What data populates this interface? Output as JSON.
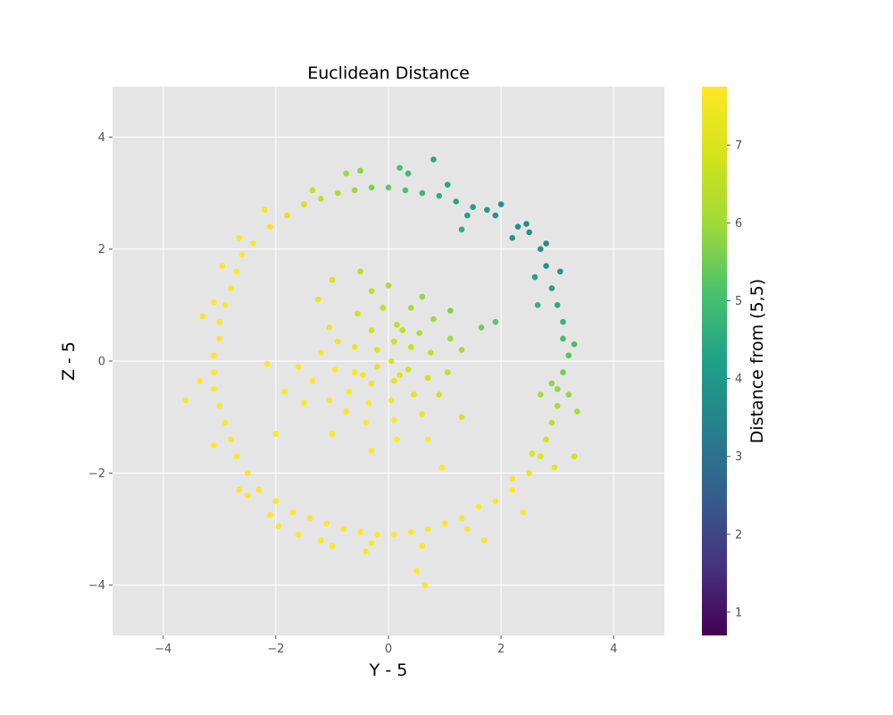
{
  "chart_data": {
    "type": "scatter",
    "title": "Euclidean Distance",
    "xlabel": "Y - 5",
    "ylabel": "Z - 5",
    "xlim": [
      -4.9,
      4.9
    ],
    "ylim": [
      -4.9,
      4.9
    ],
    "xticks": [
      -4,
      -2,
      0,
      2,
      4
    ],
    "yticks": [
      -4,
      -2,
      0,
      2,
      4
    ],
    "xtick_labels": [
      "−4",
      "−2",
      "0",
      "2",
      "4"
    ],
    "ytick_labels": [
      "−4",
      "−2",
      "0",
      "2",
      "4"
    ],
    "grid": true,
    "colormap": "viridis",
    "colorbar": {
      "label": "Distance from (5,5)",
      "range": [
        0.7,
        7.75
      ],
      "ticks": [
        1,
        2,
        3,
        4,
        5,
        6,
        7
      ],
      "tick_labels": [
        "1",
        "2",
        "3",
        "4",
        "5",
        "6",
        "7"
      ]
    },
    "colors": {
      "plot_background": "#e5e5e5",
      "grid": "#ffffff",
      "figure_background": "#ffffff"
    },
    "series": [
      {
        "points": [
          [
            2.0,
            2.8
          ],
          [
            2.3,
            2.4
          ],
          [
            2.5,
            2.3
          ],
          [
            2.7,
            2.0
          ],
          [
            2.8,
            1.7
          ],
          [
            2.9,
            1.3
          ],
          [
            3.0,
            1.0
          ],
          [
            3.1,
            0.7
          ],
          [
            3.1,
            0.4
          ],
          [
            3.2,
            0.1
          ],
          [
            3.1,
            -0.2
          ],
          [
            3.0,
            -0.5
          ],
          [
            3.0,
            -0.8
          ],
          [
            2.9,
            -1.1
          ],
          [
            2.8,
            -1.4
          ],
          [
            2.7,
            -1.7
          ],
          [
            2.5,
            -2.0
          ],
          [
            2.2,
            -2.3
          ],
          [
            1.9,
            -2.5
          ],
          [
            1.6,
            -2.6
          ],
          [
            1.3,
            -2.8
          ],
          [
            1.0,
            -2.9
          ],
          [
            0.7,
            -3.0
          ],
          [
            0.4,
            -3.05
          ],
          [
            0.1,
            -3.1
          ],
          [
            -0.2,
            -3.1
          ],
          [
            -0.5,
            -3.05
          ],
          [
            -0.8,
            -3.0
          ],
          [
            -1.1,
            -2.9
          ],
          [
            -1.4,
            -2.8
          ],
          [
            -1.7,
            -2.7
          ],
          [
            -2.0,
            -2.5
          ],
          [
            -2.3,
            -2.3
          ],
          [
            -2.5,
            -2.0
          ],
          [
            -2.7,
            -1.7
          ],
          [
            -2.8,
            -1.4
          ],
          [
            -2.9,
            -1.1
          ],
          [
            -3.0,
            -0.8
          ],
          [
            -3.1,
            -0.5
          ],
          [
            -3.1,
            -0.2
          ],
          [
            -3.1,
            0.1
          ],
          [
            -3.0,
            0.4
          ],
          [
            -3.0,
            0.7
          ],
          [
            -2.9,
            1.0
          ],
          [
            -2.8,
            1.3
          ],
          [
            -2.7,
            1.6
          ],
          [
            -2.6,
            1.9
          ],
          [
            -2.4,
            2.1
          ],
          [
            -2.1,
            2.4
          ],
          [
            -1.8,
            2.6
          ],
          [
            -1.5,
            2.8
          ],
          [
            -1.2,
            2.9
          ],
          [
            -0.9,
            3.0
          ],
          [
            -0.6,
            3.05
          ],
          [
            -0.3,
            3.1
          ],
          [
            0.0,
            3.1
          ],
          [
            0.3,
            3.05
          ],
          [
            0.6,
            3.0
          ],
          [
            0.9,
            2.95
          ],
          [
            1.2,
            2.85
          ],
          [
            1.5,
            2.75
          ],
          [
            1.75,
            2.7
          ],
          [
            0.8,
            3.6
          ],
          [
            -0.5,
            3.4
          ],
          [
            0.2,
            3.45
          ],
          [
            1.4,
            2.6
          ],
          [
            2.6,
            1.5
          ],
          [
            3.3,
            0.3
          ],
          [
            3.2,
            -0.6
          ],
          [
            3.3,
            -1.7
          ],
          [
            2.9,
            -0.4
          ],
          [
            2.7,
            -0.6
          ],
          [
            2.65,
            1.0
          ],
          [
            3.05,
            1.6
          ],
          [
            2.2,
            2.2
          ],
          [
            2.8,
            2.1
          ],
          [
            2.4,
            -2.7
          ],
          [
            1.7,
            -3.2
          ],
          [
            0.5,
            -3.75
          ],
          [
            0.65,
            -4.0
          ],
          [
            -0.4,
            -3.4
          ],
          [
            -1.0,
            -3.3
          ],
          [
            -1.6,
            -3.1
          ],
          [
            -2.1,
            -2.75
          ],
          [
            -2.5,
            -2.4
          ],
          [
            -3.6,
            -0.7
          ],
          [
            -3.3,
            0.8
          ],
          [
            -2.95,
            1.7
          ],
          [
            -2.2,
            2.7
          ],
          [
            -1.35,
            3.05
          ],
          [
            -0.75,
            3.35
          ],
          [
            0.35,
            3.35
          ],
          [
            1.05,
            3.15
          ],
          [
            1.3,
            2.35
          ],
          [
            -2.65,
            2.2
          ],
          [
            -3.1,
            1.05
          ],
          [
            -3.35,
            -0.35
          ],
          [
            -3.1,
            -1.5
          ],
          [
            -2.65,
            -2.3
          ],
          [
            -1.95,
            -2.95
          ],
          [
            -1.2,
            -3.2
          ],
          [
            -0.3,
            -3.25
          ],
          [
            0.6,
            -3.3
          ],
          [
            1.4,
            -3.0
          ],
          [
            2.2,
            -2.1
          ],
          [
            2.55,
            -1.65
          ],
          [
            2.95,
            -1.9
          ],
          [
            3.35,
            -0.9
          ],
          [
            2.45,
            2.45
          ],
          [
            1.9,
            2.6
          ],
          [
            -2.15,
            -0.05
          ],
          [
            -1.85,
            -0.55
          ],
          [
            -1.6,
            -0.1
          ],
          [
            -1.5,
            -0.75
          ],
          [
            -1.0,
            1.45
          ],
          [
            -0.5,
            1.6
          ],
          [
            0.0,
            1.35
          ],
          [
            0.95,
            -1.9
          ],
          [
            1.9,
            0.7
          ],
          [
            1.65,
            0.6
          ],
          [
            -2.0,
            -1.3
          ],
          [
            -1.0,
            -1.3
          ],
          [
            -0.3,
            -1.6
          ],
          [
            0.15,
            -1.4
          ],
          [
            0.7,
            -1.4
          ],
          [
            1.3,
            -1.0
          ],
          [
            1.3,
            0.2
          ],
          [
            1.1,
            0.9
          ],
          [
            0.6,
            1.15
          ],
          [
            -0.3,
            1.25
          ],
          [
            -1.25,
            1.1
          ],
          [
            -1.05,
            0.6
          ],
          [
            -1.2,
            0.15
          ],
          [
            -1.35,
            -0.35
          ],
          [
            -1.05,
            -0.7
          ],
          [
            -0.75,
            -0.9
          ],
          [
            -0.4,
            -1.1
          ],
          [
            0.1,
            -1.05
          ],
          [
            0.6,
            -0.95
          ],
          [
            0.9,
            -0.6
          ],
          [
            1.05,
            -0.2
          ],
          [
            1.1,
            0.4
          ],
          [
            0.8,
            0.75
          ],
          [
            0.4,
            0.95
          ],
          [
            -0.1,
            0.95
          ],
          [
            -0.55,
            0.85
          ],
          [
            -0.9,
            0.35
          ],
          [
            -0.95,
            -0.15
          ],
          [
            -0.7,
            -0.55
          ],
          [
            -0.35,
            -0.75
          ],
          [
            0.05,
            -0.7
          ],
          [
            0.45,
            -0.6
          ],
          [
            0.7,
            -0.3
          ],
          [
            0.75,
            0.15
          ],
          [
            0.55,
            0.5
          ],
          [
            0.15,
            0.65
          ],
          [
            -0.3,
            0.55
          ],
          [
            -0.6,
            0.25
          ],
          [
            -0.6,
            -0.2
          ],
          [
            -0.3,
            -0.4
          ],
          [
            0.1,
            -0.35
          ],
          [
            0.35,
            -0.15
          ],
          [
            0.4,
            0.25
          ],
          [
            0.1,
            0.35
          ],
          [
            -0.2,
            0.2
          ],
          [
            -0.2,
            -0.1
          ],
          [
            0.05,
            0.0
          ],
          [
            0.2,
            -0.25
          ],
          [
            -0.45,
            -0.25
          ],
          [
            0.25,
            0.55
          ]
        ]
      }
    ]
  }
}
